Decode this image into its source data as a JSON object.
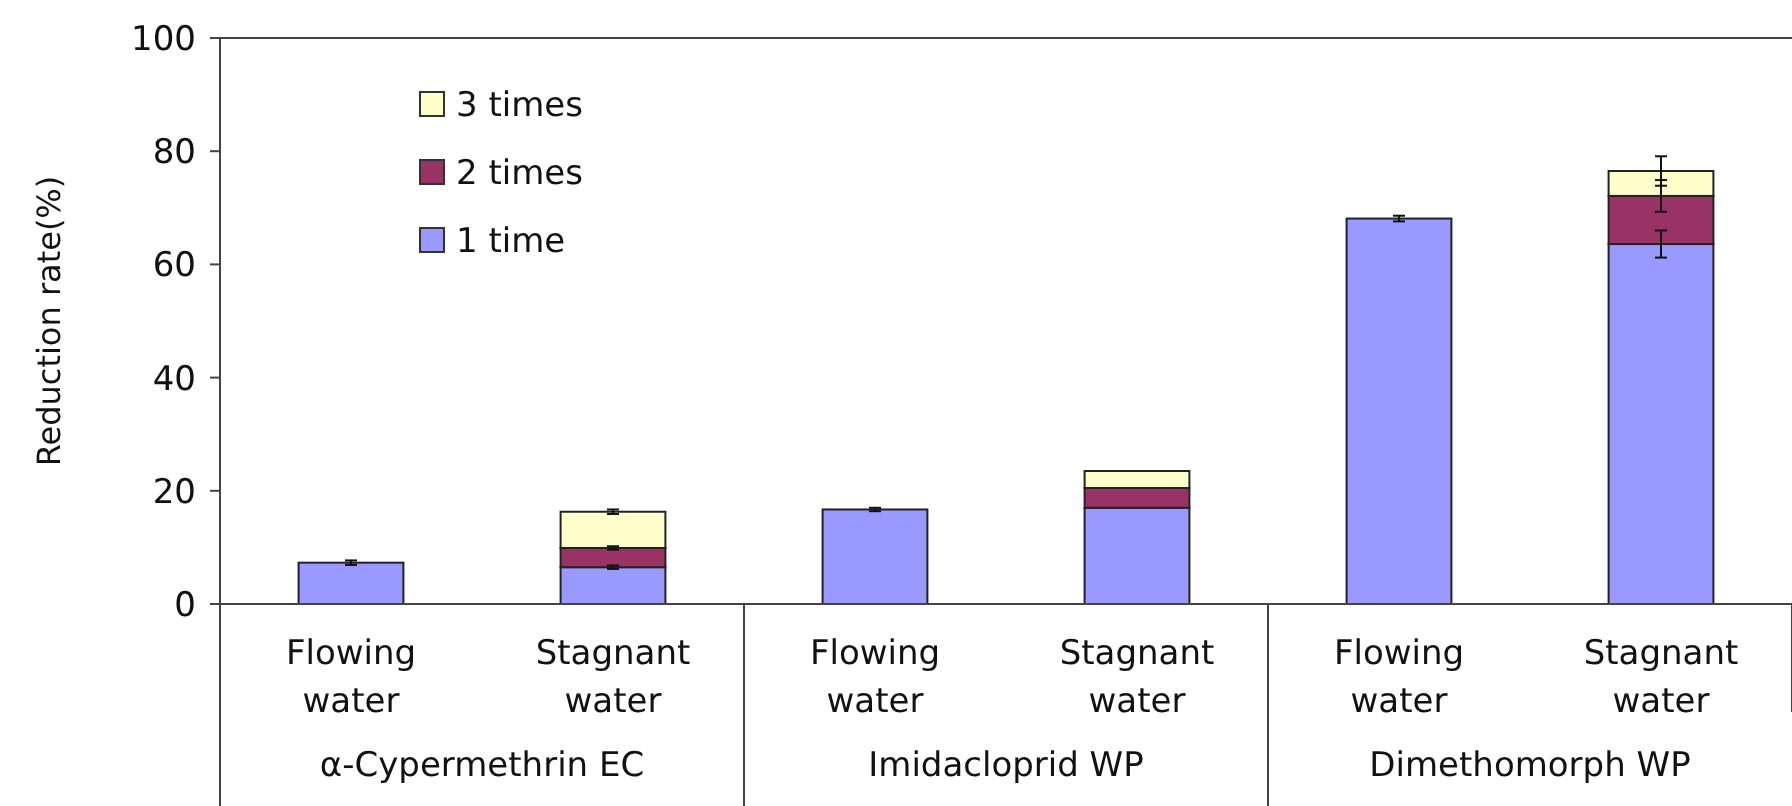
{
  "chart_data": {
    "type": "bar",
    "stacked": true,
    "ylabel": "Reduction rate(%)",
    "categories": [
      "Flowing water",
      "Stagnant water",
      "Flowing water",
      "Stagnant water",
      "Flowing water",
      "Stagnant water"
    ],
    "annotations": [
      "α-Cypermethrin EC",
      "Imidacloprid WP",
      "Dimethomorph WP"
    ],
    "series": [
      {
        "name": "1 time",
        "color": "#9999ff",
        "values": [
          7.3,
          6.5,
          16.7,
          17.0,
          68.1,
          63.6
        ],
        "errors": [
          0.4,
          0.3,
          0.3,
          null,
          0.5,
          2.4
        ]
      },
      {
        "name": "2 times",
        "color": "#993366",
        "values": [
          null,
          3.4,
          null,
          3.5,
          null,
          8.5
        ],
        "errors": [
          null,
          0.3,
          null,
          null,
          null,
          2.8
        ]
      },
      {
        "name": "3 times",
        "color": "#ffffcc",
        "values": [
          null,
          6.4,
          null,
          3.0,
          null,
          4.4
        ],
        "errors": [
          null,
          0.4,
          null,
          null,
          null,
          2.6
        ]
      }
    ],
    "ylim": [
      0,
      100
    ],
    "yticks": [
      0,
      20,
      40,
      60,
      80,
      100
    ],
    "grid": false,
    "legend": "top left"
  }
}
